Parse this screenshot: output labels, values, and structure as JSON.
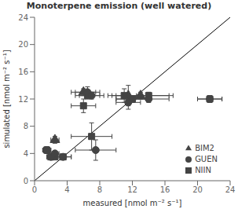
{
  "chart_data": {
    "type": "scatter",
    "title": "Monoterpene emission (well watered)",
    "x_label": "measured [nmol m⁻² s⁻¹]",
    "y_label": "simulated [nmol m⁻² s⁻¹]",
    "xlim": [
      0,
      24
    ],
    "ylim": [
      0,
      24
    ],
    "xticks": [
      0,
      4,
      8,
      12,
      16,
      20,
      24
    ],
    "yticks": [
      0,
      4,
      8,
      12,
      16,
      20,
      24
    ],
    "legend": "lower right",
    "series": [
      {
        "name": "BIM2",
        "marker": "triangle",
        "color": "#444444",
        "x": [
          2.5,
          6.0,
          11.5,
          13.0
        ],
        "values": [
          6.0,
          13.0,
          12.5,
          12.5
        ],
        "xerr": [
          0.5,
          1.5,
          1.5,
          4.0
        ],
        "yerr": [
          0.5,
          0.5,
          1.5,
          0.5
        ]
      },
      {
        "name": "NIIN",
        "marker": "square",
        "color": "#444444",
        "x": [
          1.5,
          2.0,
          2.5,
          3.5,
          6.0,
          6.5,
          7.0,
          11.0,
          12.0,
          14.0,
          21.5
        ],
        "values": [
          4.5,
          3.5,
          3.5,
          3.5,
          11.0,
          12.5,
          6.5,
          12.5,
          12.0,
          12.5,
          12.0
        ],
        "xerr": [
          0.5,
          0.5,
          0.5,
          1.0,
          1.5,
          1.5,
          2.5,
          1.5,
          2.0,
          2.5,
          1.5
        ],
        "yerr": [
          0.5,
          0.3,
          0.2,
          0.3,
          1.0,
          0.5,
          2.0,
          1.0,
          0.5,
          0.5,
          0.5
        ]
      },
      {
        "name": "GUEN",
        "marker": "circle",
        "color": "#444444",
        "x": [
          1.5,
          2.0,
          2.5,
          3.5,
          6.5,
          7.0,
          7.5,
          11.5,
          12.0,
          14.0,
          21.5
        ],
        "values": [
          4.5,
          3.5,
          4.0,
          3.5,
          13.0,
          12.5,
          4.5,
          11.5,
          12.0,
          12.0,
          12.0
        ],
        "xerr": [
          0.5,
          0.5,
          0.5,
          1.0,
          1.5,
          1.5,
          2.5,
          1.5,
          2.0,
          2.5,
          1.5
        ],
        "yerr": [
          0.5,
          0.3,
          0.2,
          0.3,
          0.8,
          0.5,
          1.5,
          1.0,
          0.5,
          0.5,
          0.5
        ]
      }
    ]
  }
}
